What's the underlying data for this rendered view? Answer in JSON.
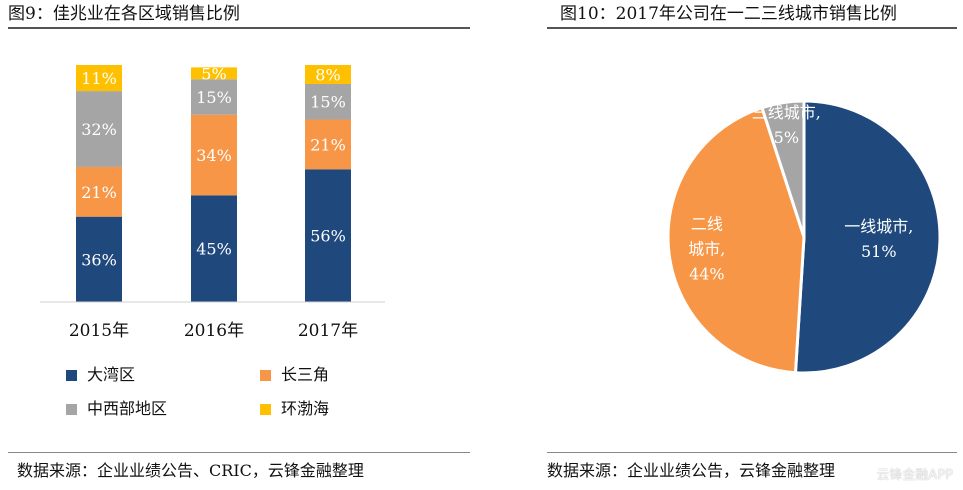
{
  "left_panel": {
    "title": "图9：佳兆业在各区域销售比例",
    "source": "数据来源：企业业绩公告、CRIC，云锋金融整理"
  },
  "right_panel": {
    "title": "图10：2017年公司在一二三线城市销售比例",
    "source": "数据来源：企业业绩公告，云锋金融整理"
  },
  "watermark": "云锋金融APP",
  "chart_data": [
    {
      "type": "bar",
      "stacked": true,
      "categories": [
        "2015年",
        "2016年",
        "2017年"
      ],
      "series": [
        {
          "name": "大湾区",
          "values": [
            36,
            45,
            56
          ],
          "labels": [
            "36%",
            "45%",
            "56%"
          ],
          "color": "#1f497d",
          "label_color": "#ffffff"
        },
        {
          "name": "长三角",
          "values": [
            21,
            34,
            21
          ],
          "labels": [
            "21%",
            "34%",
            "21%"
          ],
          "color": "#f79646",
          "label_color": "#ffffff"
        },
        {
          "name": "中西部地区",
          "values": [
            32,
            15,
            15
          ],
          "labels": [
            "32%",
            "15%",
            "15%"
          ],
          "color": "#a5a5a5",
          "label_color": "#ffffff"
        },
        {
          "name": "环渤海",
          "values": [
            11,
            5,
            8
          ],
          "labels": [
            "11%",
            "5%",
            "8%"
          ],
          "color": "#ffc000",
          "label_color": "#ffffff"
        }
      ],
      "ylim": [
        0,
        100
      ],
      "grid": false,
      "legend": "bottom"
    },
    {
      "type": "pie",
      "slices": [
        {
          "label": "一线城市,",
          "value": 51,
          "value_label": "51%",
          "color": "#1f497d",
          "text_color": "#ffffff"
        },
        {
          "label": "二线城市,",
          "value": 44,
          "value_label": "44%",
          "color": "#f79646",
          "text_color": "#ffffff"
        },
        {
          "label": "三线城市,",
          "value": 5,
          "value_label": "5%",
          "color": "#a5a5a5",
          "text_color": "#ffffff"
        }
      ],
      "start_angle_deg": 0,
      "direction": "clockwise"
    }
  ]
}
